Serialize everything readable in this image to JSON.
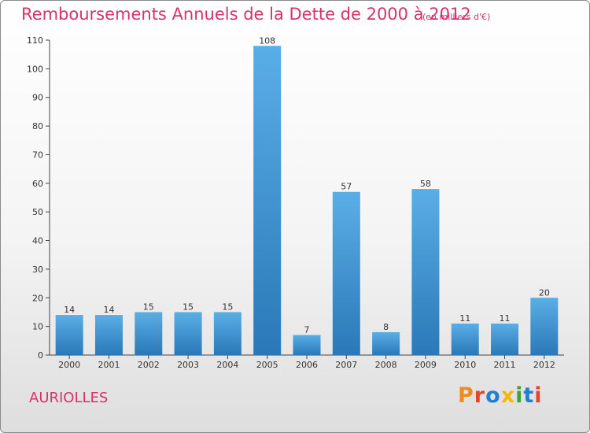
{
  "header": {
    "title": "Remboursements Annuels de la Dette de 2000 à 2012",
    "unit_note": "(en milliers d'€)"
  },
  "footer": {
    "commune": "AURIOLLES",
    "brand": "Proxiti"
  },
  "colors": {
    "title": "#d6336c",
    "bar_top": "#5aaee6",
    "bar_bottom": "#2a78b8",
    "axis": "#444444",
    "grid": "#d8d8d8",
    "brand_letters": [
      "#f08c1a",
      "#e8432d",
      "#1f7fd1",
      "#f5b800",
      "#3aa535",
      "#1f7fd1",
      "#e8432d"
    ]
  },
  "chart_data": {
    "type": "bar",
    "title": "Remboursements Annuels de la Dette de 2000 à 2012",
    "subtitle": "(en milliers d'€)",
    "categories": [
      "2000",
      "2001",
      "2002",
      "2003",
      "2004",
      "2005",
      "2006",
      "2007",
      "2008",
      "2009",
      "2010",
      "2011",
      "2012"
    ],
    "values": [
      14,
      14,
      15,
      15,
      15,
      108,
      7,
      57,
      8,
      58,
      11,
      11,
      20
    ],
    "ylim": [
      0,
      110
    ],
    "yticks": [
      0,
      10,
      20,
      30,
      40,
      50,
      60,
      70,
      80,
      90,
      100,
      110
    ],
    "xlabel": "",
    "ylabel": "",
    "grid": false,
    "data_labels": true
  }
}
